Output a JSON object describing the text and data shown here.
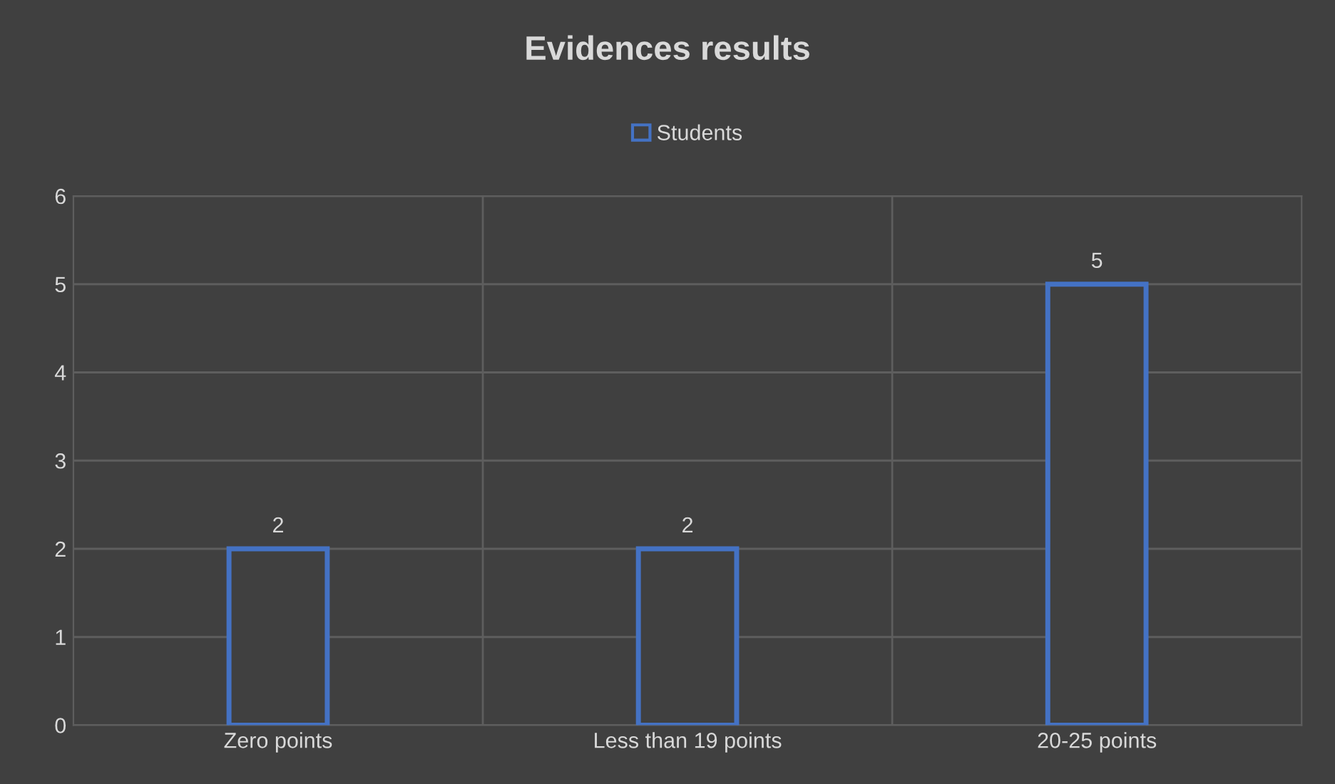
{
  "chart_data": {
    "type": "bar",
    "title": "Evidences results",
    "categories": [
      "Zero points",
      "Less than 19 points",
      "20-25 points"
    ],
    "series": [
      {
        "name": "Students",
        "color": "#4472c4",
        "values": [
          2,
          2,
          5
        ]
      }
    ],
    "ylim": [
      0,
      6
    ],
    "yticks": [
      0,
      1,
      2,
      3,
      4,
      5,
      6
    ],
    "grid": true,
    "legend": "top",
    "data_labels": true
  }
}
